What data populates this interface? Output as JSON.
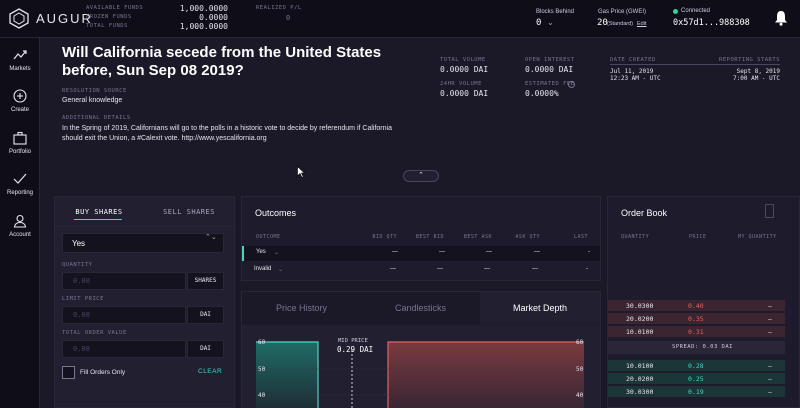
{
  "app": {
    "name": "AUGUR"
  },
  "funds": [
    {
      "label": "AVAILABLE FUNDS",
      "value": "1,000.0000"
    },
    {
      "label": "FROZEN FUNDS",
      "value": "0.0000"
    },
    {
      "label": "TOTAL FUNDS",
      "value": "1,000.0000"
    }
  ],
  "realized": {
    "label": "REALIZED P/L",
    "value": "0"
  },
  "blocks": {
    "label": "Blocks Behind",
    "value": "0",
    "chevron": "⌄"
  },
  "gas": {
    "label": "Gas Price (GWEI)",
    "value": "20",
    "standard": "(Standard)",
    "edit": "Edit"
  },
  "connection": {
    "status": "Connected",
    "address": "0x57d1...988308",
    "chevron": "⌄",
    "status_color": "#2ed39a"
  },
  "sidebar": {
    "items": [
      {
        "label": "Markets",
        "icon": "trending-up-icon"
      },
      {
        "label": "Create",
        "icon": "plus-circle-icon"
      },
      {
        "label": "Portfolio",
        "icon": "briefcase-icon"
      },
      {
        "label": "Reporting",
        "icon": "check-icon"
      },
      {
        "label": "Account",
        "icon": "user-icon"
      }
    ]
  },
  "market": {
    "title": "Will California secede from the United States before, Sun Sep 08 2019?",
    "resolution_label": "RESOLUTION SOURCE",
    "resolution_value": "General knowledge",
    "details_label": "ADDITIONAL DETAILS",
    "details": "In the Spring of 2019, Californians will go to the polls in a historic vote to decide by referendum if California should exit the Union, a #Calexit vote. http://www.yescalifornia.org"
  },
  "stats": {
    "total_volume": {
      "label": "TOTAL VOLUME",
      "value": "0.0000 DAI"
    },
    "open_interest": {
      "label": "OPEN INTEREST",
      "value": "0.0000 DAI"
    },
    "volume_24h": {
      "label": "24HR VOLUME",
      "value": "0.0000 DAI"
    },
    "estimated_fee": {
      "label": "ESTIMATED FEE",
      "value": "0.0000%"
    }
  },
  "dates": {
    "created_label": "DATE CREATED",
    "created_date": "Jul 11, 2019",
    "created_time": "12:23 AM - UTC",
    "reporting_label": "REPORTING STARTS",
    "reporting_date": "Sept 8, 2019",
    "reporting_time": "7:00 AM - UTC"
  },
  "expand": {
    "icon": "chevron-up-icon",
    "glyph": "⌃"
  },
  "order_form": {
    "tab_buy": "BUY SHARES",
    "tab_sell": "SELL SHARES",
    "outcome": "Yes",
    "select_arrows": "⌃⌄",
    "quantity_label": "QUANTITY",
    "quantity_placeholder": "0.00",
    "quantity_unit": "SHARES",
    "limit_label": "LIMIT PRICE",
    "limit_placeholder": "0.00",
    "limit_unit": "DAI",
    "total_label": "TOTAL ORDER VALUE",
    "total_placeholder": "0.00",
    "total_unit": "DAI",
    "fill_only": "Fill Orders Only",
    "clear": "CLEAR"
  },
  "outcomes": {
    "title": "Outcomes",
    "headers": [
      "OUTCOME",
      "BID QTY",
      "BEST BID",
      "BEST ASK",
      "ASK QTY",
      "LAST"
    ],
    "rows": [
      {
        "name": "Yes",
        "bid_qty": "—",
        "best_bid": "—",
        "best_ask": "—",
        "ask_qty": "—",
        "last": "-"
      },
      {
        "name": "Invalid",
        "bid_qty": "—",
        "best_bid": "—",
        "best_ask": "—",
        "ask_qty": "—",
        "last": "-"
      }
    ]
  },
  "chart_tabs": [
    "Price History",
    "Candlesticks",
    "Market Depth"
  ],
  "chart_data": {
    "type": "area",
    "mid_price_label": "MID PRICE",
    "mid_price": "0.29 DAI",
    "ytick_labels": [
      "60",
      "50",
      "40"
    ],
    "left_side": {
      "color": "#4bd6c4"
    },
    "right_side": {
      "color": "#e0645f"
    }
  },
  "order_book": {
    "title": "Order Book",
    "headers": [
      "QUANTITY",
      "PRICE",
      "MY QUANTITY"
    ],
    "asks": [
      {
        "quantity": "30.0300",
        "price": "0.40",
        "mine": "—"
      },
      {
        "quantity": "20.0200",
        "price": "0.35",
        "mine": "—"
      },
      {
        "quantity": "10.0100",
        "price": "0.31",
        "mine": "—"
      }
    ],
    "spread": "SPREAD: 0.03 DAI",
    "bids": [
      {
        "quantity": "10.0100",
        "price": "0.28",
        "mine": "—"
      },
      {
        "quantity": "20.0200",
        "price": "0.25",
        "mine": "—"
      },
      {
        "quantity": "30.0300",
        "price": "0.19",
        "mine": "—"
      }
    ]
  }
}
